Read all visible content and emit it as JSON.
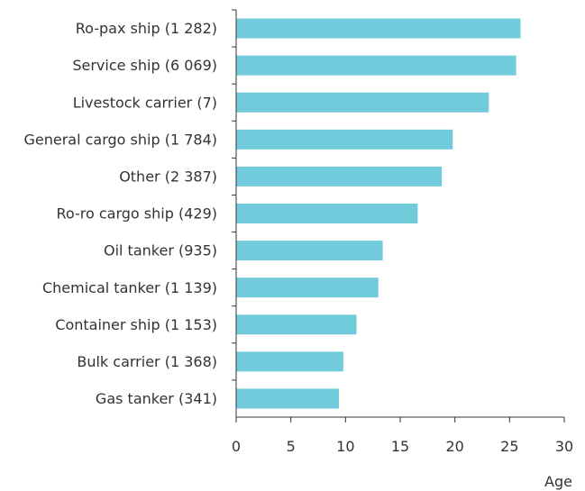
{
  "chart_data": {
    "type": "bar",
    "orientation": "horizontal",
    "title": "",
    "xlabel": "Age",
    "ylabel": "",
    "categories": [
      "Ro-pax ship (1 282)",
      "Service ship (6 069)",
      "Livestock carrier (7)",
      "General cargo ship (1 784)",
      "Other (2 387)",
      "Ro-ro cargo ship (429)",
      "Oil tanker (935)",
      "Chemical tanker (1 139)",
      "Container ship (1 153)",
      "Bulk carrier (1 368)",
      "Gas tanker (341)"
    ],
    "values": [
      26,
      25.6,
      23.1,
      19.8,
      18.8,
      16.6,
      13.4,
      13.0,
      11.0,
      9.8,
      9.4
    ],
    "xlim": [
      0,
      30
    ],
    "xticks": [
      "0",
      "5",
      "10",
      "15",
      "20",
      "25",
      "30"
    ],
    "bar_color": "#72cbdb",
    "grid": false,
    "legend": "none"
  }
}
